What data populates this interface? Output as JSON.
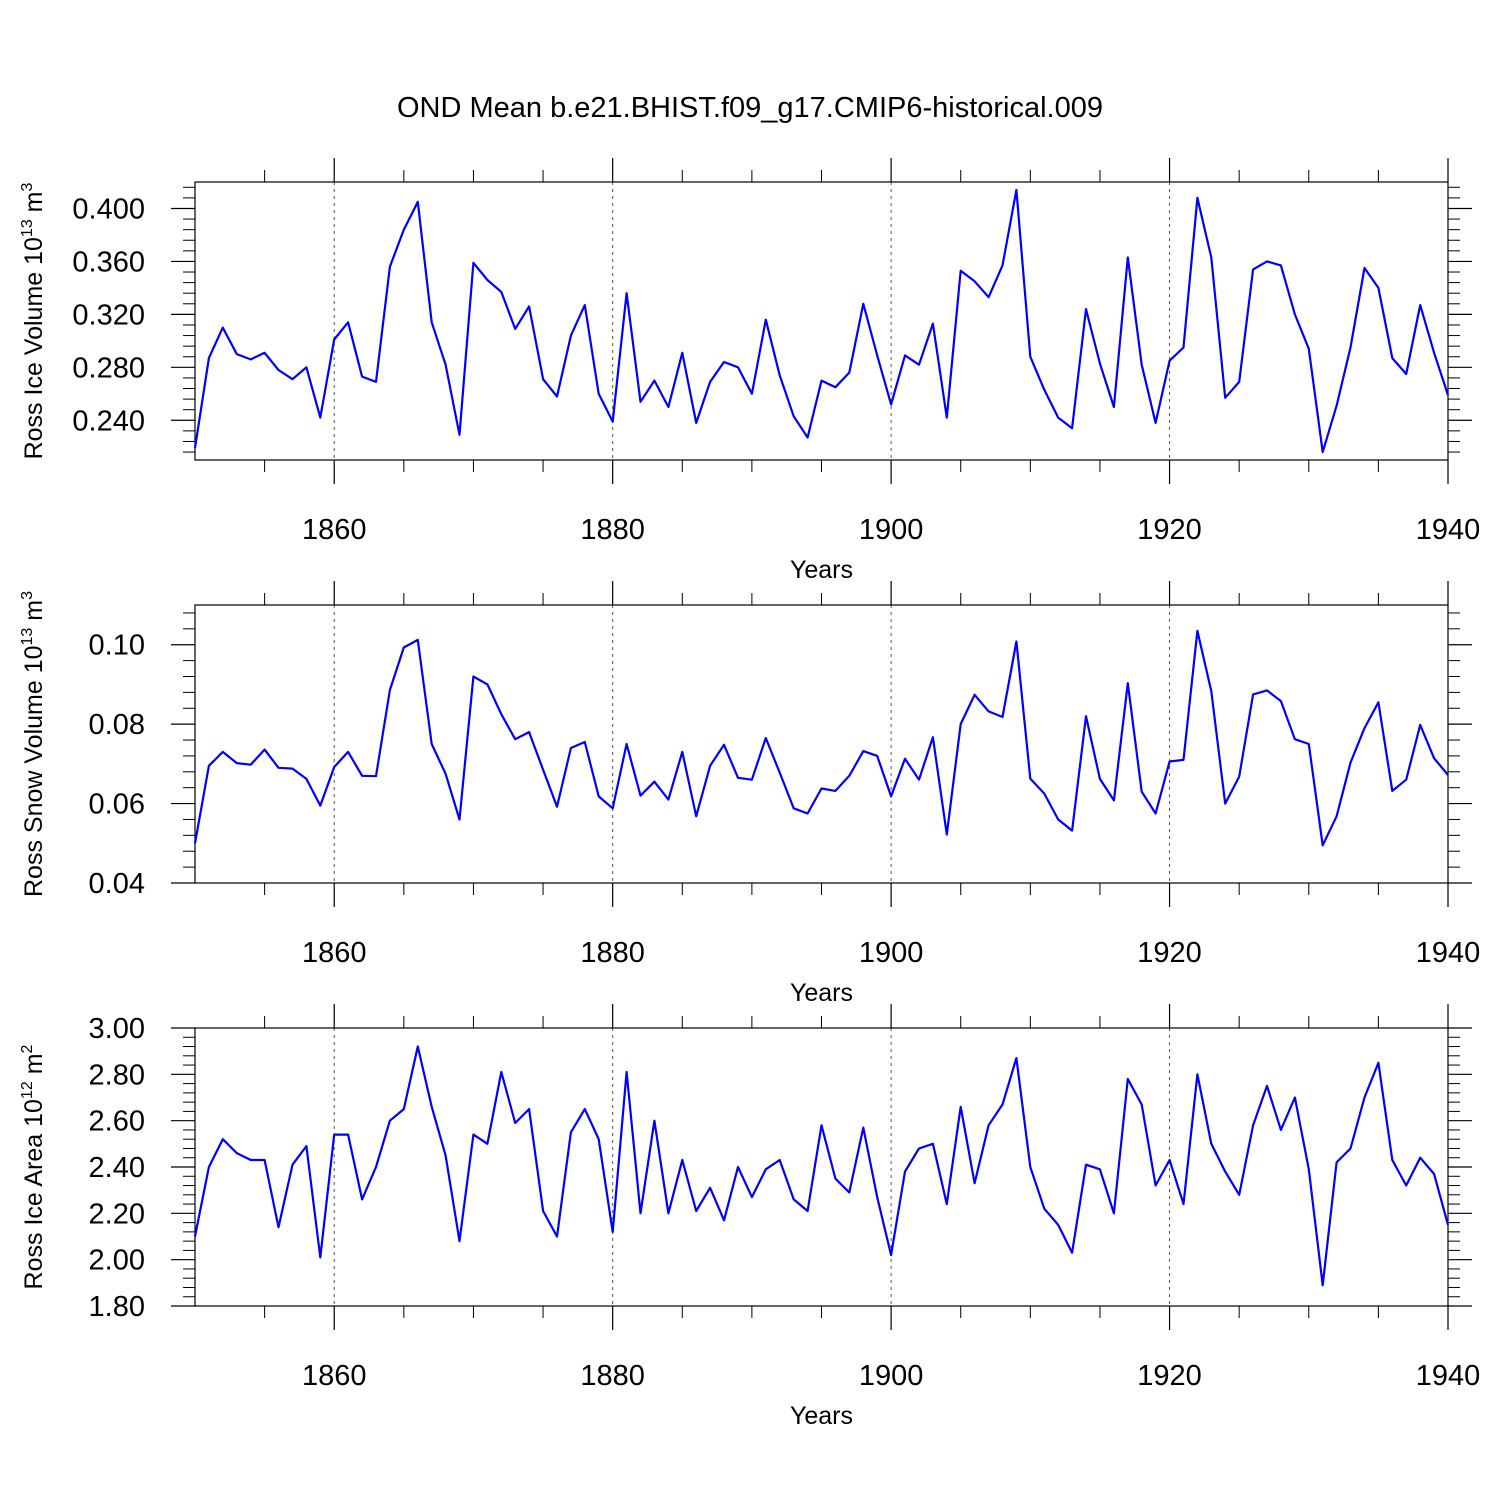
{
  "title": "OND Mean b.e21.BHIST.f09_g17.CMIP6-historical.009",
  "chart_data": [
    {
      "type": "line",
      "title": "OND Mean b.e21.BHIST.f09_g17.CMIP6-historical.009",
      "xlabel": "Years",
      "ylabel": "Ross Ice Volume 10",
      "ylabel_exp": "13",
      "ylabel_unit": " m",
      "ylabel_unit_exp": "3",
      "xlim": [
        1850,
        1940
      ],
      "ylim": [
        0.21,
        0.42
      ],
      "xticks": [
        1860,
        1880,
        1900,
        1920,
        1940
      ],
      "xtick_labels": [
        "1860",
        "1880",
        "1900",
        "1920",
        "1940"
      ],
      "yticks": [
        0.24,
        0.28,
        0.32,
        0.36,
        0.4
      ],
      "ytick_labels": [
        "0.240",
        "0.280",
        "0.320",
        "0.360",
        "0.400"
      ],
      "grid": "dashed vertical at x ticks",
      "color": "#0000ff",
      "series": [
        {
          "name": "Ross Ice Volume",
          "x_start": 1850,
          "values": [
            0.219,
            0.287,
            0.31,
            0.29,
            0.286,
            0.291,
            0.278,
            0.271,
            0.28,
            0.242,
            0.301,
            0.314,
            0.273,
            0.269,
            0.356,
            0.384,
            0.405,
            0.314,
            0.282,
            0.229,
            0.359,
            0.346,
            0.337,
            0.309,
            0.326,
            0.271,
            0.258,
            0.304,
            0.327,
            0.26,
            0.239,
            0.336,
            0.254,
            0.27,
            0.25,
            0.291,
            0.238,
            0.269,
            0.284,
            0.28,
            0.26,
            0.316,
            0.274,
            0.243,
            0.227,
            0.27,
            0.265,
            0.276,
            0.328,
            0.289,
            0.252,
            0.289,
            0.282,
            0.313,
            0.242,
            0.353,
            0.345,
            0.333,
            0.357,
            0.414,
            0.288,
            0.263,
            0.242,
            0.234,
            0.324,
            0.283,
            0.25,
            0.363,
            0.282,
            0.238,
            0.285,
            0.295,
            0.408,
            0.363,
            0.257,
            0.269,
            0.354,
            0.36,
            0.357,
            0.32,
            0.294,
            0.216,
            0.251,
            0.295,
            0.355,
            0.34,
            0.287,
            0.275,
            0.327,
            0.291,
            0.259
          ]
        }
      ]
    },
    {
      "type": "line",
      "xlabel": "Years",
      "ylabel": "Ross Snow Volume 10",
      "ylabel_exp": "13",
      "ylabel_unit": " m",
      "ylabel_unit_exp": "3",
      "xlim": [
        1850,
        1940
      ],
      "ylim": [
        0.04,
        0.11
      ],
      "xticks": [
        1860,
        1880,
        1900,
        1920,
        1940
      ],
      "xtick_labels": [
        "1860",
        "1880",
        "1900",
        "1920",
        "1940"
      ],
      "yticks": [
        0.04,
        0.06,
        0.08,
        0.1
      ],
      "ytick_labels": [
        "0.04",
        "0.06",
        "0.08",
        "0.10"
      ],
      "grid": "dashed vertical at x ticks",
      "color": "#0000ff",
      "series": [
        {
          "name": "Ross Snow Volume",
          "x_start": 1850,
          "values": [
            0.05,
            0.0695,
            0.073,
            0.0702,
            0.0698,
            0.0736,
            0.069,
            0.0688,
            0.0662,
            0.0595,
            0.0692,
            0.073,
            0.067,
            0.0669,
            0.0886,
            0.0993,
            0.1012,
            0.075,
            0.0675,
            0.056,
            0.092,
            0.09,
            0.0825,
            0.0762,
            0.078,
            0.0685,
            0.0592,
            0.074,
            0.0755,
            0.0618,
            0.0588,
            0.075,
            0.062,
            0.0655,
            0.061,
            0.073,
            0.0568,
            0.0695,
            0.0748,
            0.0665,
            0.066,
            0.0765,
            0.0678,
            0.0588,
            0.0575,
            0.0638,
            0.0632,
            0.067,
            0.0732,
            0.072,
            0.0618,
            0.0713,
            0.066,
            0.0767,
            0.0522,
            0.08,
            0.0874,
            0.0832,
            0.0818,
            0.1008,
            0.0663,
            0.0625,
            0.056,
            0.0532,
            0.082,
            0.0662,
            0.0608,
            0.0903,
            0.063,
            0.0575,
            0.0706,
            0.071,
            0.1035,
            0.0883,
            0.06,
            0.0668,
            0.0875,
            0.0885,
            0.0858,
            0.0762,
            0.075,
            0.0495,
            0.0568,
            0.0703,
            0.079,
            0.0855,
            0.0632,
            0.066,
            0.0798,
            0.0714,
            0.0672
          ]
        }
      ]
    },
    {
      "type": "line",
      "xlabel": "Years",
      "ylabel": "Ross Ice Area 10",
      "ylabel_exp": "12",
      "ylabel_unit": " m",
      "ylabel_unit_exp": "2",
      "xlim": [
        1850,
        1940
      ],
      "ylim": [
        1.8,
        3.0
      ],
      "xticks": [
        1860,
        1880,
        1900,
        1920,
        1940
      ],
      "xtick_labels": [
        "1860",
        "1880",
        "1900",
        "1920",
        "1940"
      ],
      "yticks": [
        1.8,
        2.0,
        2.2,
        2.4,
        2.6,
        2.8,
        3.0
      ],
      "ytick_labels": [
        "1.80",
        "2.00",
        "2.20",
        "2.40",
        "2.60",
        "2.80",
        "3.00"
      ],
      "grid": "dashed vertical at x ticks",
      "color": "#0000ff",
      "series": [
        {
          "name": "Ross Ice Area",
          "x_start": 1850,
          "values": [
            2.1,
            2.4,
            2.52,
            2.46,
            2.43,
            2.43,
            2.14,
            2.41,
            2.49,
            2.01,
            2.54,
            2.54,
            2.26,
            2.4,
            2.6,
            2.65,
            2.92,
            2.66,
            2.45,
            2.08,
            2.54,
            2.5,
            2.81,
            2.59,
            2.65,
            2.21,
            2.1,
            2.55,
            2.65,
            2.52,
            2.12,
            2.81,
            2.2,
            2.6,
            2.2,
            2.43,
            2.21,
            2.31,
            2.17,
            2.4,
            2.27,
            2.39,
            2.43,
            2.26,
            2.21,
            2.58,
            2.35,
            2.29,
            2.57,
            2.27,
            2.02,
            2.38,
            2.48,
            2.5,
            2.24,
            2.66,
            2.33,
            2.58,
            2.67,
            2.87,
            2.4,
            2.22,
            2.15,
            2.03,
            2.41,
            2.39,
            2.2,
            2.78,
            2.67,
            2.32,
            2.43,
            2.24,
            2.8,
            2.5,
            2.38,
            2.28,
            2.58,
            2.75,
            2.56,
            2.7,
            2.39,
            1.89,
            2.42,
            2.48,
            2.7,
            2.85,
            2.43,
            2.32,
            2.44,
            2.37,
            2.15
          ]
        }
      ]
    }
  ]
}
